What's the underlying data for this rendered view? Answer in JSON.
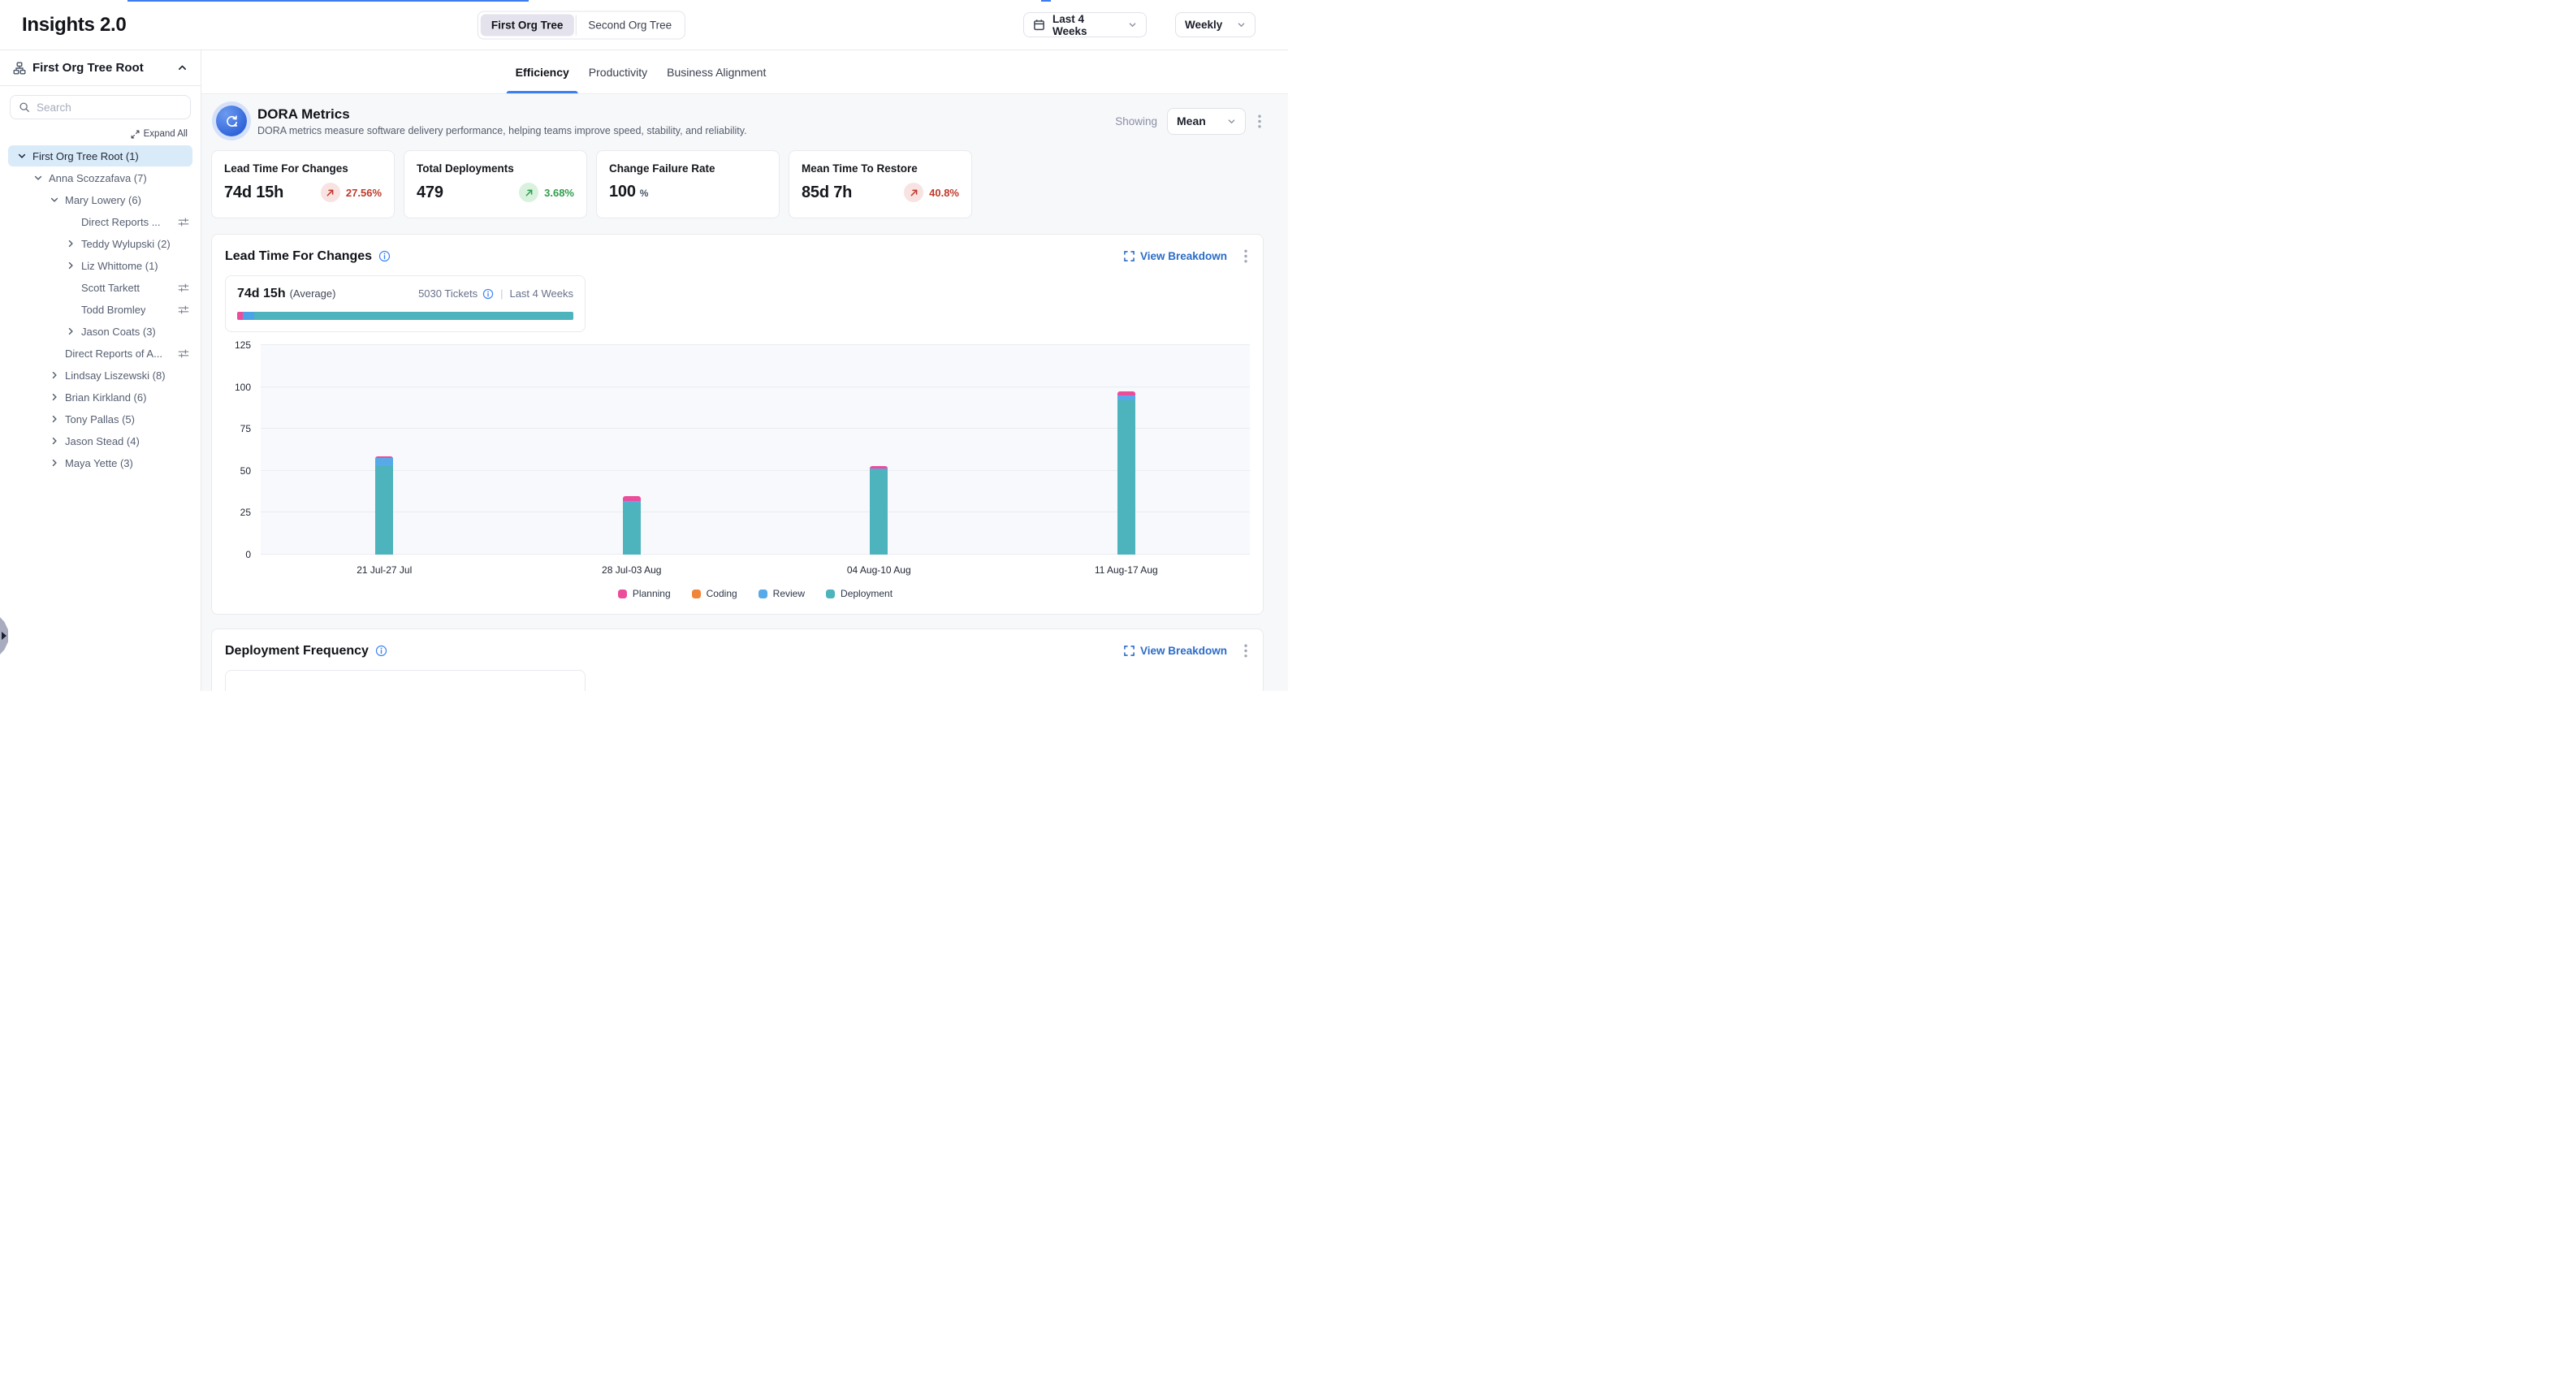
{
  "header": {
    "title": "Insights 2.0",
    "org_toggle": [
      {
        "label": "First Org Tree",
        "active": true
      },
      {
        "label": "Second Org Tree",
        "active": false
      }
    ],
    "date_range": "Last 4 Weeks",
    "granularity": "Weekly"
  },
  "sidebar": {
    "root_label": "First Org Tree Root",
    "search_placeholder": "Search",
    "expand_all_label": "Expand All",
    "tree": [
      {
        "label": "First Org Tree Root (1)",
        "level": 0,
        "chevron": "down",
        "selected": true,
        "filter_icon": false
      },
      {
        "label": "Anna Scozzafava (7)",
        "level": 1,
        "chevron": "down",
        "selected": false,
        "filter_icon": false
      },
      {
        "label": "Mary Lowery (6)",
        "level": 2,
        "chevron": "down",
        "selected": false,
        "filter_icon": false
      },
      {
        "label": "Direct Reports ...",
        "level": 3,
        "chevron": "none",
        "selected": false,
        "filter_icon": true
      },
      {
        "label": "Teddy Wylupski (2)",
        "level": 3,
        "chevron": "right",
        "selected": false,
        "filter_icon": false
      },
      {
        "label": "Liz Whittome (1)",
        "level": 3,
        "chevron": "right",
        "selected": false,
        "filter_icon": false
      },
      {
        "label": "Scott Tarkett",
        "level": 3,
        "chevron": "none",
        "selected": false,
        "filter_icon": true
      },
      {
        "label": "Todd Bromley",
        "level": 3,
        "chevron": "none",
        "selected": false,
        "filter_icon": true
      },
      {
        "label": "Jason Coats (3)",
        "level": 3,
        "chevron": "right",
        "selected": false,
        "filter_icon": false
      },
      {
        "label": "Direct Reports of A...",
        "level": 2,
        "chevron": "none",
        "selected": false,
        "filter_icon": true
      },
      {
        "label": "Lindsay Liszewski (8)",
        "level": 2,
        "chevron": "right",
        "selected": false,
        "filter_icon": false
      },
      {
        "label": "Brian Kirkland (6)",
        "level": 2,
        "chevron": "right",
        "selected": false,
        "filter_icon": false
      },
      {
        "label": "Tony Pallas (5)",
        "level": 2,
        "chevron": "right",
        "selected": false,
        "filter_icon": false
      },
      {
        "label": "Jason Stead (4)",
        "level": 2,
        "chevron": "right",
        "selected": false,
        "filter_icon": false
      },
      {
        "label": "Maya Yette (3)",
        "level": 2,
        "chevron": "right",
        "selected": false,
        "filter_icon": false
      }
    ]
  },
  "tabs": [
    {
      "label": "Efficiency",
      "active": true
    },
    {
      "label": "Productivity",
      "active": false
    },
    {
      "label": "Business Alignment",
      "active": false
    }
  ],
  "dora": {
    "title": "DORA Metrics",
    "subtitle": "DORA metrics measure software delivery performance, helping teams improve speed, stability, and reliability.",
    "showing_label": "Showing",
    "showing_value": "Mean",
    "cards": [
      {
        "title": "Lead Time For Changes",
        "value": "74d 15h",
        "suffix": "",
        "delta": "27.56%",
        "trend": "up",
        "sentiment": "negative"
      },
      {
        "title": "Total Deployments",
        "value": "479",
        "suffix": "",
        "delta": "3.68%",
        "trend": "up",
        "sentiment": "positive"
      },
      {
        "title": "Change Failure Rate",
        "value": "100",
        "suffix": "%",
        "delta": "",
        "trend": "",
        "sentiment": ""
      },
      {
        "title": "Mean Time To Restore",
        "value": "85d 7h",
        "suffix": "",
        "delta": "40.8%",
        "trend": "up",
        "sentiment": "negative"
      }
    ]
  },
  "lead_time": {
    "title": "Lead Time For Changes",
    "view_breakdown": "View Breakdown",
    "average_value": "74d 15h",
    "average_label": "(Average)",
    "tickets": "5030 Tickets",
    "separator": "|",
    "period": "Last 4 Weeks",
    "progress": [
      {
        "name": "Planning",
        "pct": 1.7,
        "color": "#EC4D9B"
      },
      {
        "name": "Review",
        "pct": 3.3,
        "color": "#4BA2E6"
      },
      {
        "name": "Deployment",
        "pct": 95.0,
        "color": "#4DB3BC"
      }
    ]
  },
  "chart_data": {
    "type": "bar",
    "stacked": true,
    "title": "Lead Time For Changes by week",
    "categories": [
      "21 Jul-27 Jul",
      "28 Jul-03 Aug",
      "04 Aug-10 Aug",
      "11 Aug-17 Aug"
    ],
    "series": [
      {
        "name": "Planning",
        "color": "#EC4D9B",
        "values": [
          1,
          3,
          1.5,
          2.5
        ]
      },
      {
        "name": "Coding",
        "color": "#F08439",
        "values": [
          0,
          0,
          0,
          0
        ]
      },
      {
        "name": "Review",
        "color": "#57A9E8",
        "values": [
          4.5,
          1,
          0.5,
          3
        ]
      },
      {
        "name": "Deployment",
        "color": "#4DB3BC",
        "values": [
          53,
          31,
          51,
          92
        ]
      }
    ],
    "ylim": [
      0,
      125
    ],
    "ytick_step": 25,
    "grid": true,
    "legend_position": "bottom"
  },
  "deployment_freq": {
    "title": "Deployment Frequency",
    "view_breakdown": "View Breakdown"
  },
  "colors": {
    "accent_blue": "#2B6CC8",
    "tab_underline": "#3C7EF0",
    "selected_row_bg": "#D9EAF9",
    "negative_text": "#C0392B",
    "negative_bg": "#F9E2E2",
    "positive_text": "#2F9E4F",
    "positive_bg": "#D9F2DD",
    "info_blue": "#3B82F6"
  }
}
